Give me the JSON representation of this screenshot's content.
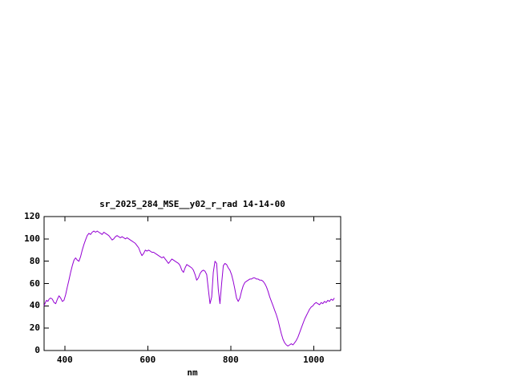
{
  "chart_data": {
    "type": "line",
    "title": "sr_2025_284_MSE__y02_r_rad 14-14-00",
    "xlabel": "nm",
    "ylabel": "",
    "xlim": [
      350,
      1065
    ],
    "ylim": [
      0,
      120
    ],
    "xticks": [
      400,
      600,
      800,
      1000
    ],
    "yticks": [
      0,
      20,
      40,
      60,
      80,
      100,
      120
    ],
    "grid": false,
    "legend_position": "none",
    "line_color": "#9400d3",
    "axis_color": "#000000",
    "background_color": "#ffffff",
    "series": [
      {
        "name": "sr_2025_284_MSE__y02_r_rad",
        "points": [
          [
            350,
            40
          ],
          [
            353,
            43
          ],
          [
            356,
            45
          ],
          [
            359,
            44
          ],
          [
            362,
            46
          ],
          [
            366,
            47
          ],
          [
            370,
            46
          ],
          [
            374,
            43
          ],
          [
            378,
            42
          ],
          [
            382,
            46
          ],
          [
            386,
            49
          ],
          [
            390,
            47
          ],
          [
            394,
            44
          ],
          [
            398,
            45
          ],
          [
            402,
            50
          ],
          [
            406,
            57
          ],
          [
            410,
            63
          ],
          [
            414,
            70
          ],
          [
            418,
            76
          ],
          [
            422,
            81
          ],
          [
            426,
            83
          ],
          [
            430,
            81
          ],
          [
            434,
            80
          ],
          [
            438,
            84
          ],
          [
            442,
            90
          ],
          [
            446,
            95
          ],
          [
            450,
            99
          ],
          [
            454,
            103
          ],
          [
            458,
            105
          ],
          [
            462,
            104
          ],
          [
            466,
            106
          ],
          [
            470,
            107
          ],
          [
            474,
            106
          ],
          [
            478,
            107
          ],
          [
            482,
            106
          ],
          [
            486,
            105
          ],
          [
            490,
            104
          ],
          [
            494,
            106
          ],
          [
            498,
            105
          ],
          [
            502,
            104
          ],
          [
            506,
            103
          ],
          [
            510,
            101
          ],
          [
            514,
            99
          ],
          [
            518,
            100
          ],
          [
            522,
            102
          ],
          [
            526,
            103
          ],
          [
            530,
            102
          ],
          [
            534,
            101
          ],
          [
            538,
            102
          ],
          [
            542,
            101
          ],
          [
            546,
            100
          ],
          [
            550,
            101
          ],
          [
            554,
            100
          ],
          [
            558,
            99
          ],
          [
            562,
            98
          ],
          [
            566,
            97
          ],
          [
            570,
            96
          ],
          [
            574,
            94
          ],
          [
            578,
            92
          ],
          [
            582,
            88
          ],
          [
            586,
            85
          ],
          [
            590,
            87
          ],
          [
            594,
            90
          ],
          [
            598,
            89
          ],
          [
            602,
            90
          ],
          [
            606,
            89
          ],
          [
            610,
            88
          ],
          [
            614,
            88
          ],
          [
            618,
            87
          ],
          [
            622,
            86
          ],
          [
            626,
            85
          ],
          [
            630,
            84
          ],
          [
            634,
            83
          ],
          [
            638,
            84
          ],
          [
            642,
            82
          ],
          [
            646,
            80
          ],
          [
            650,
            78
          ],
          [
            654,
            80
          ],
          [
            658,
            82
          ],
          [
            662,
            81
          ],
          [
            666,
            80
          ],
          [
            670,
            79
          ],
          [
            674,
            78
          ],
          [
            678,
            76
          ],
          [
            682,
            72
          ],
          [
            686,
            70
          ],
          [
            690,
            74
          ],
          [
            694,
            77
          ],
          [
            698,
            76
          ],
          [
            702,
            75
          ],
          [
            706,
            74
          ],
          [
            710,
            72
          ],
          [
            714,
            68
          ],
          [
            718,
            63
          ],
          [
            722,
            65
          ],
          [
            726,
            69
          ],
          [
            730,
            71
          ],
          [
            734,
            72
          ],
          [
            738,
            71
          ],
          [
            742,
            68
          ],
          [
            746,
            55
          ],
          [
            750,
            42
          ],
          [
            754,
            48
          ],
          [
            758,
            70
          ],
          [
            762,
            80
          ],
          [
            766,
            78
          ],
          [
            770,
            55
          ],
          [
            774,
            42
          ],
          [
            778,
            60
          ],
          [
            782,
            76
          ],
          [
            786,
            78
          ],
          [
            790,
            77
          ],
          [
            794,
            74
          ],
          [
            798,
            72
          ],
          [
            802,
            68
          ],
          [
            806,
            62
          ],
          [
            810,
            55
          ],
          [
            814,
            47
          ],
          [
            818,
            44
          ],
          [
            822,
            47
          ],
          [
            826,
            53
          ],
          [
            830,
            58
          ],
          [
            834,
            61
          ],
          [
            838,
            62
          ],
          [
            842,
            63
          ],
          [
            846,
            64
          ],
          [
            850,
            64
          ],
          [
            854,
            65
          ],
          [
            858,
            65
          ],
          [
            862,
            64
          ],
          [
            866,
            64
          ],
          [
            870,
            63
          ],
          [
            874,
            63
          ],
          [
            878,
            62
          ],
          [
            882,
            60
          ],
          [
            886,
            57
          ],
          [
            890,
            53
          ],
          [
            894,
            48
          ],
          [
            898,
            44
          ],
          [
            902,
            40
          ],
          [
            906,
            36
          ],
          [
            910,
            32
          ],
          [
            914,
            27
          ],
          [
            918,
            21
          ],
          [
            922,
            15
          ],
          [
            926,
            10
          ],
          [
            930,
            7
          ],
          [
            934,
            5
          ],
          [
            938,
            4
          ],
          [
            942,
            5
          ],
          [
            946,
            6
          ],
          [
            950,
            5
          ],
          [
            954,
            7
          ],
          [
            958,
            9
          ],
          [
            962,
            12
          ],
          [
            966,
            16
          ],
          [
            970,
            20
          ],
          [
            974,
            24
          ],
          [
            978,
            28
          ],
          [
            982,
            31
          ],
          [
            986,
            34
          ],
          [
            990,
            37
          ],
          [
            994,
            39
          ],
          [
            998,
            40
          ],
          [
            1002,
            42
          ],
          [
            1006,
            43
          ],
          [
            1010,
            42
          ],
          [
            1014,
            41
          ],
          [
            1018,
            43
          ],
          [
            1022,
            42
          ],
          [
            1026,
            44
          ],
          [
            1030,
            43
          ],
          [
            1034,
            45
          ],
          [
            1038,
            44
          ],
          [
            1042,
            46
          ],
          [
            1046,
            45
          ],
          [
            1050,
            47
          ]
        ]
      }
    ]
  }
}
